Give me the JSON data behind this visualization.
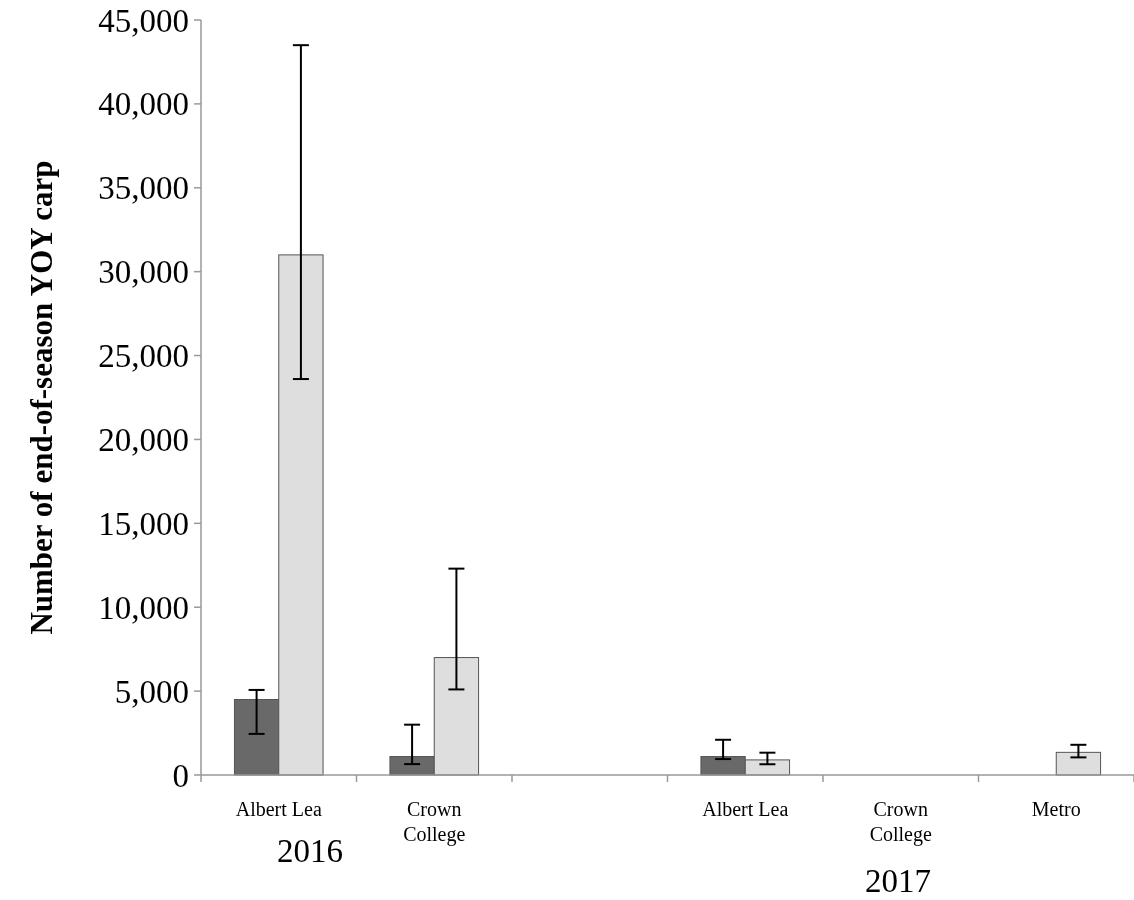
{
  "chart_data": {
    "type": "bar",
    "ylabel": "Number of end-of-season YOY carp",
    "categories": [
      "Albert Lea",
      "Crown College",
      null,
      "Albert Lea",
      "Crown College",
      "Metro"
    ],
    "series": [
      {
        "color": "#696969",
        "values": [
          4500,
          1100,
          0,
          1100,
          0,
          0
        ],
        "errors": [
          [
            2450,
            5070
          ],
          [
            650,
            3000
          ],
          null,
          [
            950,
            2100
          ],
          null,
          null
        ]
      },
      {
        "color": "#dedede",
        "values": [
          31000,
          7000,
          0,
          900,
          0,
          1350
        ],
        "errors": [
          [
            23600,
            43500
          ],
          [
            5100,
            12300
          ],
          null,
          [
            640,
            1330
          ],
          null,
          [
            1050,
            1800
          ]
        ]
      }
    ],
    "ylim": [
      0,
      45000
    ],
    "yticks": [
      {
        "value": 0,
        "label": "0"
      },
      {
        "value": 5000,
        "label": "5,000"
      },
      {
        "value": 10000,
        "label": "10,000"
      },
      {
        "value": 15000,
        "label": "15,000"
      },
      {
        "value": 20000,
        "label": "20,000"
      },
      {
        "value": 25000,
        "label": "25,000"
      },
      {
        "value": 30000,
        "label": "30,000"
      },
      {
        "value": 35000,
        "label": "35,000"
      },
      {
        "value": 40000,
        "label": "40,000"
      },
      {
        "value": 45000,
        "label": "45,000"
      }
    ],
    "annotations": [
      "2016",
      "2017"
    ],
    "grid": false
  }
}
